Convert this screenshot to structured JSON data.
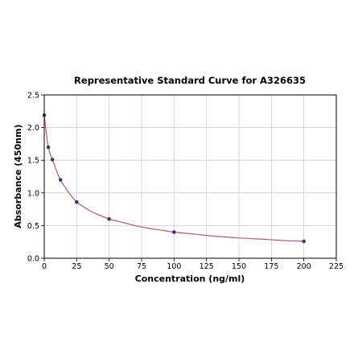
{
  "chart_data": {
    "type": "scatter",
    "title": "Representative Standard Curve for A326635",
    "xlabel": "Concentration (ng/ml)",
    "ylabel": "Absorbance (450nm)",
    "xlim": [
      0,
      225
    ],
    "ylim": [
      0,
      2.5
    ],
    "x_ticks": [
      0,
      25,
      50,
      75,
      100,
      125,
      150,
      175,
      200,
      225
    ],
    "y_ticks": [
      "0.0",
      "0.5",
      "1.0",
      "1.5",
      "2.0",
      "2.5"
    ],
    "grid": true,
    "legend": "none",
    "colors": {
      "points": "#3b3b6b",
      "curve": "#b05a7a",
      "grid": "#cccccc",
      "axes": "#000000"
    },
    "series": [
      {
        "x": [
          0,
          3.125,
          6.25,
          12.5,
          25,
          50,
          100,
          200
        ],
        "y": [
          2.19,
          1.7,
          1.51,
          1.2,
          0.86,
          0.6,
          0.4,
          0.26
        ]
      }
    ],
    "curve": {
      "x": [
        0,
        1,
        2,
        3.125,
        4.5,
        6.25,
        8,
        10,
        12.5,
        15,
        18,
        21,
        25,
        30,
        35,
        40,
        45,
        50,
        60,
        70,
        80,
        90,
        100,
        115,
        130,
        150,
        170,
        185,
        200
      ],
      "y": [
        2.19,
        2.01,
        1.85,
        1.7,
        1.6,
        1.51,
        1.42,
        1.31,
        1.2,
        1.12,
        1.03,
        0.95,
        0.86,
        0.79,
        0.73,
        0.68,
        0.64,
        0.6,
        0.55,
        0.5,
        0.46,
        0.43,
        0.4,
        0.37,
        0.34,
        0.31,
        0.29,
        0.27,
        0.26
      ]
    }
  }
}
